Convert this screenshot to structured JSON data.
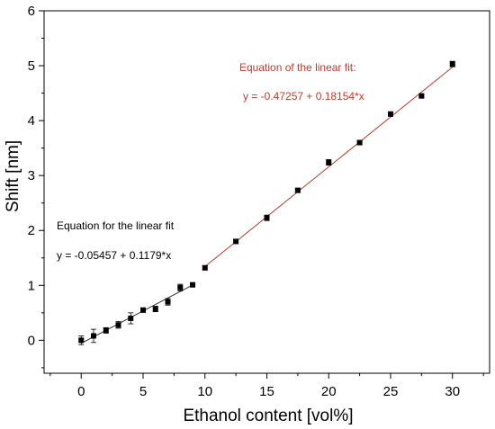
{
  "chart_data": {
    "type": "scatter",
    "xlabel": "Ethanol content [vol%]",
    "ylabel": "Shift [nm]",
    "xlim": [
      -3,
      33
    ],
    "ylim": [
      -0.6,
      6
    ],
    "xticks": [
      0,
      5,
      10,
      15,
      20,
      25,
      30
    ],
    "yticks": [
      0,
      1,
      2,
      3,
      4,
      5,
      6
    ],
    "grid": false,
    "series": [
      {
        "marker": "square",
        "color": "#000000",
        "x": [
          0,
          1,
          2,
          3,
          4,
          5,
          6,
          7,
          8,
          9,
          10,
          12.5,
          15,
          17.5,
          20,
          22.5,
          25,
          27.5,
          30
        ],
        "y": [
          0.0,
          0.08,
          0.18,
          0.28,
          0.4,
          0.55,
          0.57,
          0.7,
          0.96,
          1.01,
          1.32,
          1.8,
          2.23,
          2.73,
          3.24,
          3.6,
          4.12,
          4.45,
          5.03
        ],
        "err": [
          0.08,
          0.12,
          0.05,
          0.06,
          0.1,
          0.04,
          0.05,
          0.06,
          0.06,
          0.03,
          0.04,
          0.03,
          0.05,
          0.04,
          0.05,
          0.03,
          0.04,
          0.03,
          0.05
        ]
      }
    ],
    "fits": [
      {
        "color": "#333333",
        "intercept": -0.05457,
        "slope": 0.1179,
        "x_range": [
          0,
          9
        ],
        "label": "Equation for the linear fit",
        "equation": "y = -0.05457 + 0.1179*x"
      },
      {
        "color": "#b03a2e",
        "intercept": -0.47257,
        "slope": 0.18154,
        "x_range": [
          10,
          30
        ],
        "label": "Equation of the linear fit:",
        "equation": "y = -0.47257 + 0.18154*x"
      }
    ]
  }
}
